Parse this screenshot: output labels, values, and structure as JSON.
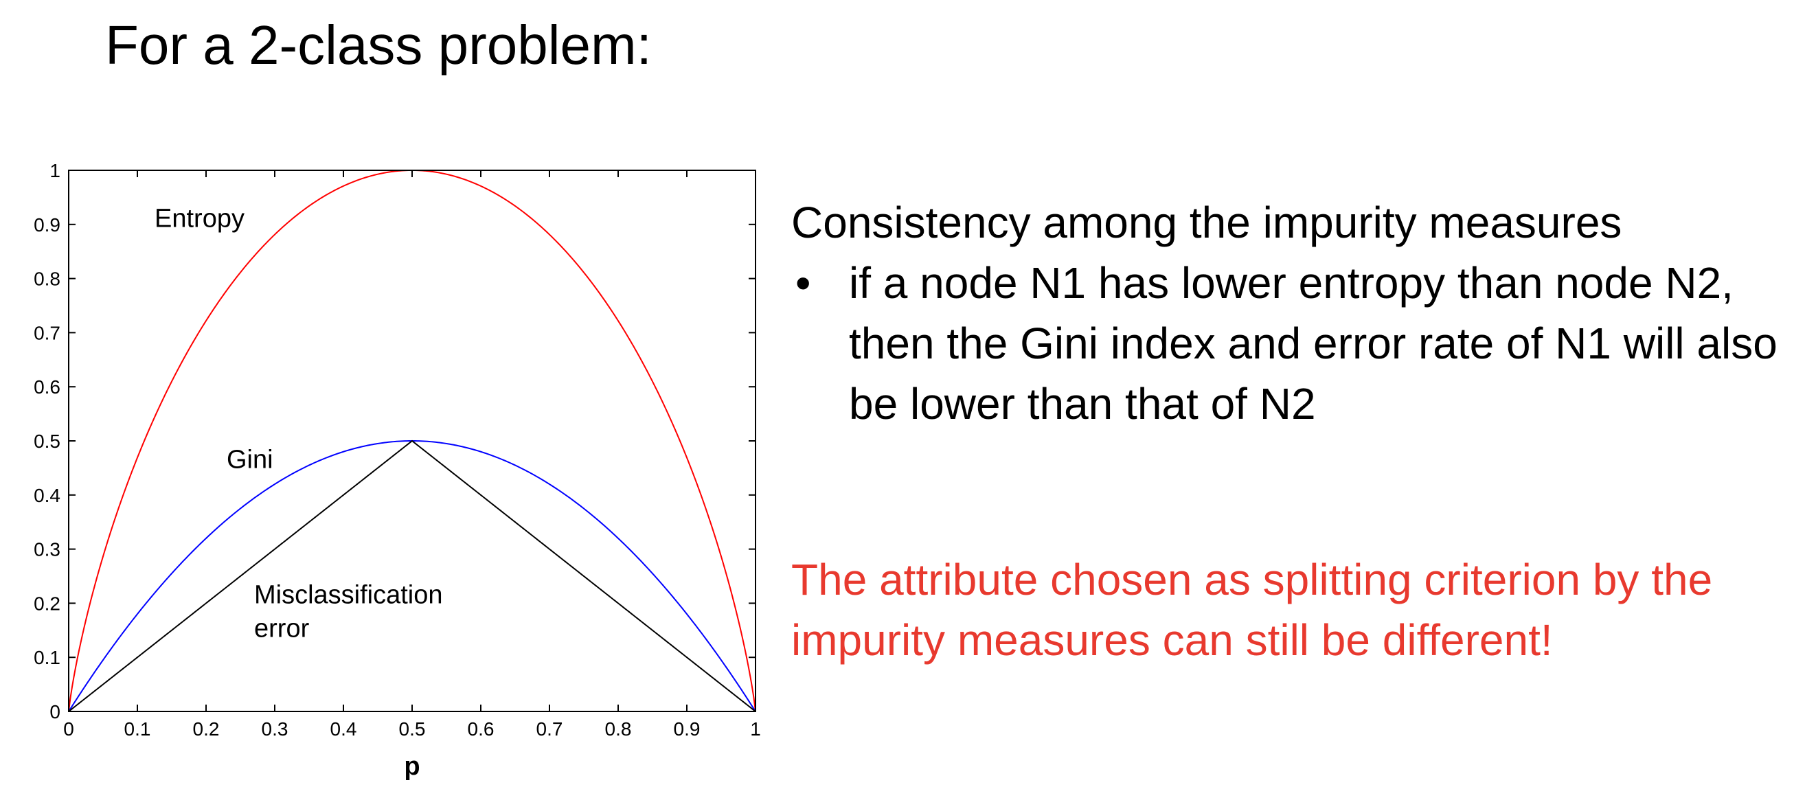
{
  "slide": {
    "title": "For a 2-class problem:",
    "consistency_heading": "Consistency among the impurity measures",
    "bullets": [
      "if a node N1 has lower entropy than node N2, then the Gini index and error rate of N1 will also be lower than that of N2"
    ],
    "note": "The attribute chosen as splitting criterion by the impurity measures can still be different!",
    "note_color": "#e8392e"
  },
  "chart_data": {
    "type": "line",
    "xlabel": "p",
    "ylabel": "",
    "xlim": [
      0,
      1
    ],
    "ylim": [
      0,
      1
    ],
    "x_ticks": [
      "0",
      "0.1",
      "0.2",
      "0.3",
      "0.4",
      "0.5",
      "0.6",
      "0.7",
      "0.8",
      "0.9",
      "1"
    ],
    "y_ticks": [
      "0",
      "0.1",
      "0.2",
      "0.3",
      "0.4",
      "0.5",
      "0.6",
      "0.7",
      "0.8",
      "0.9",
      "1"
    ],
    "grid": false,
    "x": [
      0,
      0.05,
      0.1,
      0.15,
      0.2,
      0.25,
      0.3,
      0.35,
      0.4,
      0.45,
      0.5,
      0.55,
      0.6,
      0.65,
      0.7,
      0.75,
      0.8,
      0.85,
      0.9,
      0.95,
      1
    ],
    "series": [
      {
        "name": "Entropy",
        "color": "#ff0000",
        "values": [
          0,
          0.286,
          0.469,
          0.61,
          0.722,
          0.811,
          0.881,
          0.934,
          0.971,
          0.993,
          1,
          0.993,
          0.971,
          0.934,
          0.881,
          0.811,
          0.722,
          0.61,
          0.469,
          0.286,
          0
        ]
      },
      {
        "name": "Gini",
        "color": "#0000ff",
        "values": [
          0,
          0.095,
          0.18,
          0.255,
          0.32,
          0.375,
          0.42,
          0.455,
          0.48,
          0.495,
          0.5,
          0.495,
          0.48,
          0.455,
          0.42,
          0.375,
          0.32,
          0.255,
          0.18,
          0.095,
          0
        ]
      },
      {
        "name": "Misclassification error",
        "color": "#000000",
        "values": [
          0,
          0.05,
          0.1,
          0.15,
          0.2,
          0.25,
          0.3,
          0.35,
          0.4,
          0.45,
          0.5,
          0.45,
          0.4,
          0.35,
          0.3,
          0.25,
          0.2,
          0.15,
          0.1,
          0.05,
          0
        ]
      }
    ],
    "annotations": [
      {
        "text": "Entropy",
        "x": 0.125,
        "y": 0.895
      },
      {
        "text": "Gini",
        "x": 0.23,
        "y": 0.45
      },
      {
        "text": "Misclassification",
        "x": 0.27,
        "y": 0.2
      },
      {
        "text": "error",
        "x": 0.27,
        "y": 0.138
      }
    ]
  }
}
